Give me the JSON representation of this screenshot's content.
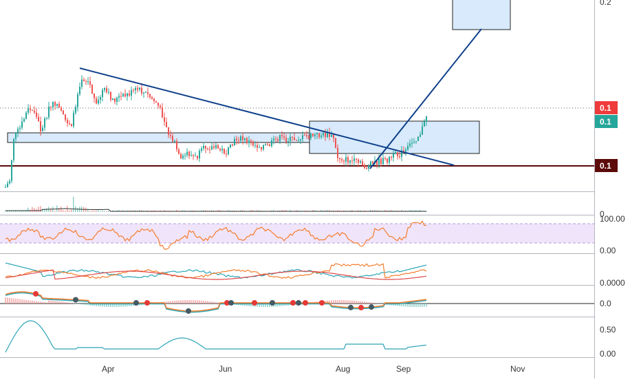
{
  "chart_data": {
    "type": "candlestick",
    "x_axis": {
      "ticks": [
        "Apr",
        "Jun",
        "Aug",
        "Sep",
        "Nov"
      ]
    },
    "price_axis": {
      "ticks": [
        "0.2"
      ]
    },
    "price_labels": [
      {
        "value": "0.1",
        "color": "#ef3b3b",
        "role": "last-price"
      },
      {
        "value": "0.1",
        "color": "#26a69a",
        "role": "bid"
      },
      {
        "value": "0.1",
        "color": "#5c0a0a",
        "role": "support-level"
      }
    ],
    "volume_axis": {
      "ticks": [
        "0"
      ]
    },
    "rsi": {
      "ticks": [
        "100.00",
        "0.00"
      ],
      "band": [
        30,
        70
      ]
    },
    "dmi": {
      "ticks": [
        "0.0000"
      ]
    },
    "macd": {
      "ticks": [
        "0.0"
      ]
    },
    "fifth": {
      "ticks": [
        "0.50",
        "0.00"
      ]
    },
    "colors": {
      "up": "#26a69a",
      "down": "#ef5350",
      "trendline": "#0d3f8a",
      "rsi_line": "#f57c2b",
      "rsi_band": "#e8d6f7",
      "zone_fill": "#d8eafb",
      "support": "#5c0a0a"
    }
  }
}
